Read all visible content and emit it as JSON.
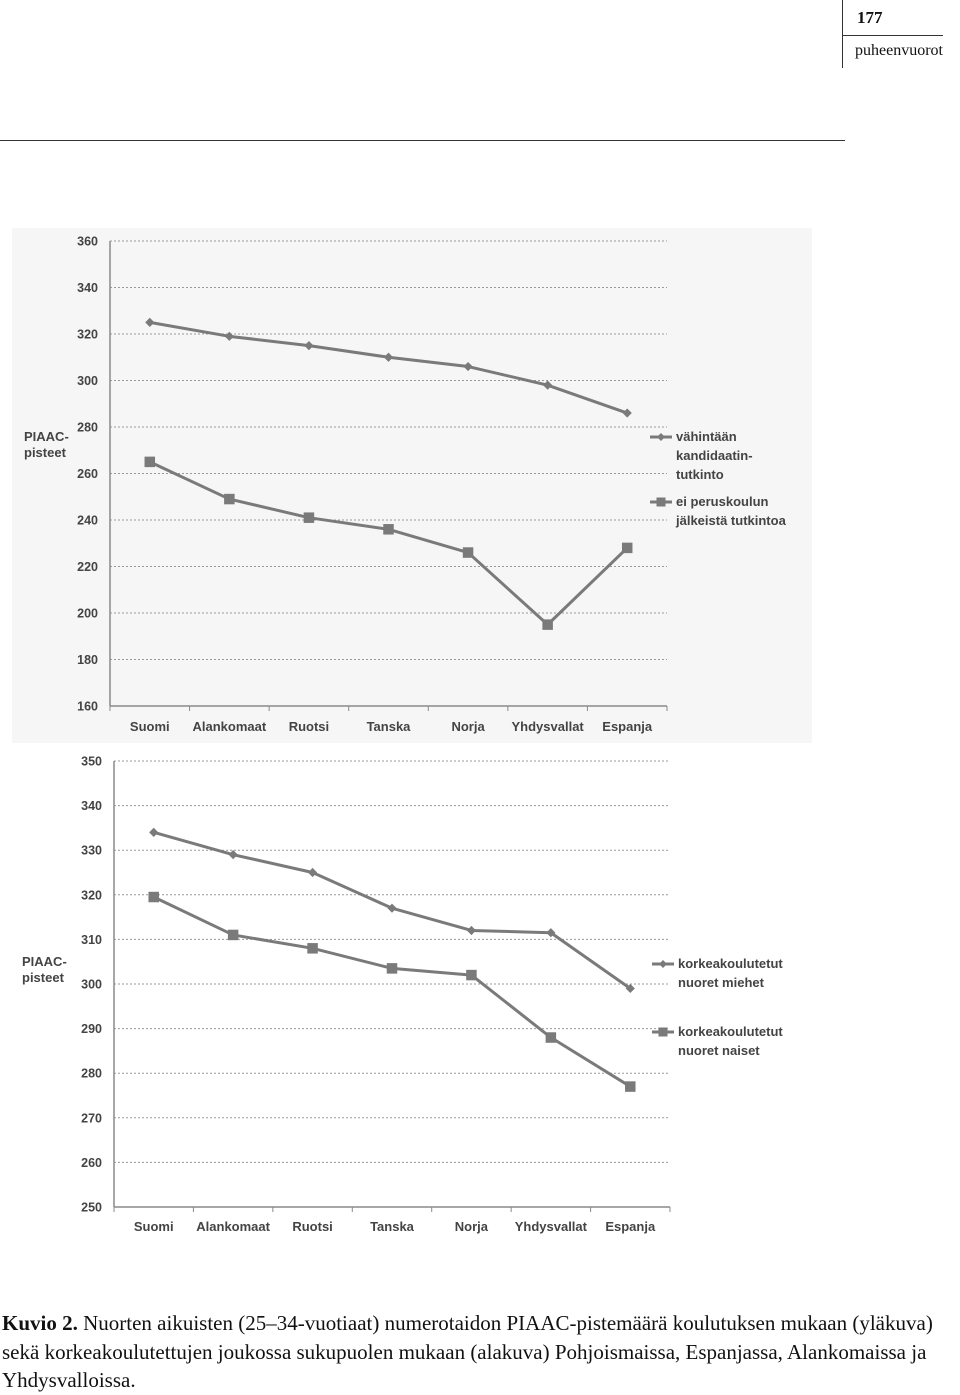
{
  "header": {
    "page_number": "177",
    "section": "puheenvuorot"
  },
  "caption": {
    "label": "Kuvio 2.",
    "text": "Nuorten aikuisten (25–34-vuotiaat) numerotaidon PIAAC-pistemäärä koulutuksen mukaan (yläkuva) sekä korkeakoulutettujen joukossa sukupuolen mukaan (alakuva) Pohjoismaissa, Espanjassa, Alankomaissa ja Yhdysvalloissa."
  },
  "chart_data": [
    {
      "type": "line",
      "ylabel": "PIAAC-\npisteet",
      "ylim": [
        160,
        360
      ],
      "yticks": [
        160,
        180,
        200,
        220,
        240,
        260,
        280,
        300,
        320,
        340,
        360
      ],
      "categories": [
        "Suomi",
        "Alankomaat",
        "Ruotsi",
        "Tanska",
        "Norja",
        "Yhdysvallat",
        "Espanja"
      ],
      "grid": true,
      "legend_position": "right",
      "series": [
        {
          "name": "vähintään\nkandidaatin-\ntutkinto",
          "marker": "diamond",
          "color": "#7a7a7a",
          "values": [
            325,
            319,
            315,
            310,
            306,
            298,
            286
          ]
        },
        {
          "name": "ei peruskoulun\njälkeistä tutkintoa",
          "marker": "square",
          "color": "#7a7a7a",
          "values": [
            265,
            249,
            241,
            236,
            226,
            195,
            228
          ]
        }
      ]
    },
    {
      "type": "line",
      "ylabel": "PIAAC-\npisteet",
      "ylim": [
        250,
        350
      ],
      "yticks": [
        250,
        260,
        270,
        280,
        290,
        300,
        310,
        320,
        330,
        340,
        350
      ],
      "categories": [
        "Suomi",
        "Alankomaat",
        "Ruotsi",
        "Tanska",
        "Norja",
        "Yhdysvallat",
        "Espanja"
      ],
      "grid": true,
      "legend_position": "right",
      "series": [
        {
          "name": "korkeakoulutetut\nnuoret miehet",
          "marker": "diamond",
          "color": "#7a7a7a",
          "values": [
            334,
            329,
            325,
            317,
            312,
            311.5,
            299
          ]
        },
        {
          "name": "korkeakoulutetut\nnuoret naiset",
          "marker": "square",
          "color": "#7a7a7a",
          "values": [
            319.5,
            311,
            308,
            303.5,
            302,
            288,
            277
          ]
        }
      ]
    }
  ]
}
